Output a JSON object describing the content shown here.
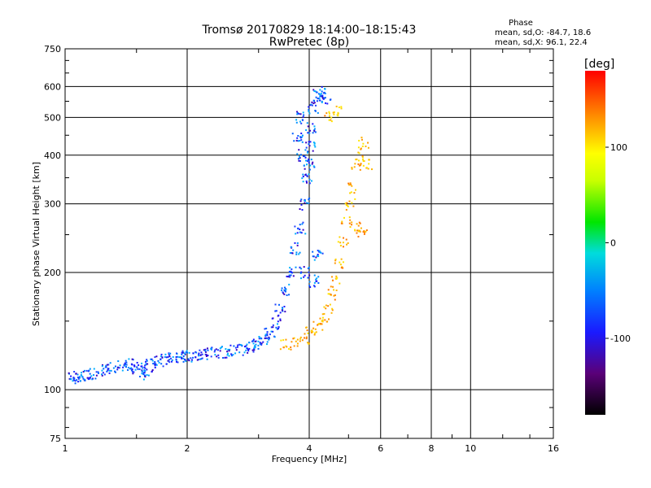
{
  "chart_data": {
    "type": "scatter",
    "title": "Tromsø 20170829 18:14:00–18:15:43",
    "subtitle": "RwPretec (8p)",
    "xlabel": "Frequency [MHz]",
    "ylabel": "Stationary phase Virtual Height [km]",
    "x_scale": "log",
    "y_scale": "log",
    "xlim": [
      1,
      16
    ],
    "ylim": [
      75,
      750
    ],
    "x_ticks": [
      1,
      2,
      4,
      6,
      8,
      10,
      16
    ],
    "y_ticks": [
      75,
      100,
      200,
      300,
      400,
      500,
      600,
      750
    ],
    "grid": true,
    "phase_info": {
      "heading": "Phase",
      "o_line": "mean, sd,O: -84.7, 18.6",
      "x_line": "mean, sd,X:  96.1, 22.4"
    },
    "colorbar": {
      "label": "[deg]",
      "range": [
        -180,
        180
      ],
      "ticks": [
        100,
        0,
        -100
      ]
    },
    "series": [
      {
        "values": [
          [
            1.05,
            107
          ],
          [
            1.08,
            108
          ],
          [
            1.12,
            109
          ],
          [
            1.18,
            110
          ],
          [
            1.24,
            112
          ],
          [
            1.3,
            114
          ],
          [
            1.38,
            115
          ],
          [
            1.45,
            116
          ],
          [
            1.5,
            114
          ],
          [
            1.55,
            112
          ],
          [
            1.6,
            110
          ],
          [
            1.62,
            118
          ],
          [
            1.7,
            119
          ],
          [
            1.78,
            120
          ],
          [
            1.85,
            121
          ],
          [
            1.93,
            122
          ],
          [
            2.0,
            122
          ],
          [
            2.1,
            123
          ],
          [
            2.2,
            123
          ],
          [
            2.3,
            124
          ],
          [
            2.45,
            125
          ],
          [
            2.6,
            126
          ],
          [
            2.75,
            127
          ],
          [
            2.9,
            129
          ],
          [
            3.0,
            131
          ],
          [
            3.1,
            134
          ],
          [
            3.2,
            140
          ],
          [
            3.3,
            148
          ],
          [
            3.4,
            160
          ],
          [
            3.5,
            180
          ],
          [
            3.6,
            200
          ],
          [
            3.7,
            230
          ],
          [
            3.8,
            260
          ],
          [
            3.9,
            300
          ],
          [
            3.95,
            350
          ],
          [
            4.0,
            380
          ],
          [
            4.02,
            420
          ],
          [
            4.05,
            470
          ],
          [
            4.1,
            530
          ],
          [
            4.2,
            570
          ],
          [
            4.3,
            580
          ],
          [
            4.4,
            560
          ],
          [
            3.85,
            400
          ],
          [
            3.8,
            500
          ],
          [
            3.75,
            440
          ],
          [
            3.9,
            200
          ],
          [
            4.1,
            190
          ],
          [
            4.2,
            220
          ]
        ]
      },
      {
        "values": [
          [
            3.5,
            130
          ],
          [
            3.7,
            132
          ],
          [
            3.9,
            135
          ],
          [
            4.05,
            140
          ],
          [
            4.2,
            145
          ],
          [
            4.35,
            150
          ],
          [
            4.45,
            160
          ],
          [
            4.55,
            175
          ],
          [
            4.65,
            190
          ],
          [
            4.75,
            210
          ],
          [
            4.85,
            240
          ],
          [
            4.95,
            270
          ],
          [
            5.05,
            300
          ],
          [
            5.15,
            330
          ],
          [
            5.25,
            370
          ],
          [
            5.35,
            400
          ],
          [
            5.45,
            430
          ],
          [
            4.7,
            520
          ],
          [
            4.5,
            500
          ],
          [
            5.3,
            260
          ],
          [
            5.4,
            250
          ],
          [
            5.6,
            380
          ]
        ]
      }
    ]
  }
}
